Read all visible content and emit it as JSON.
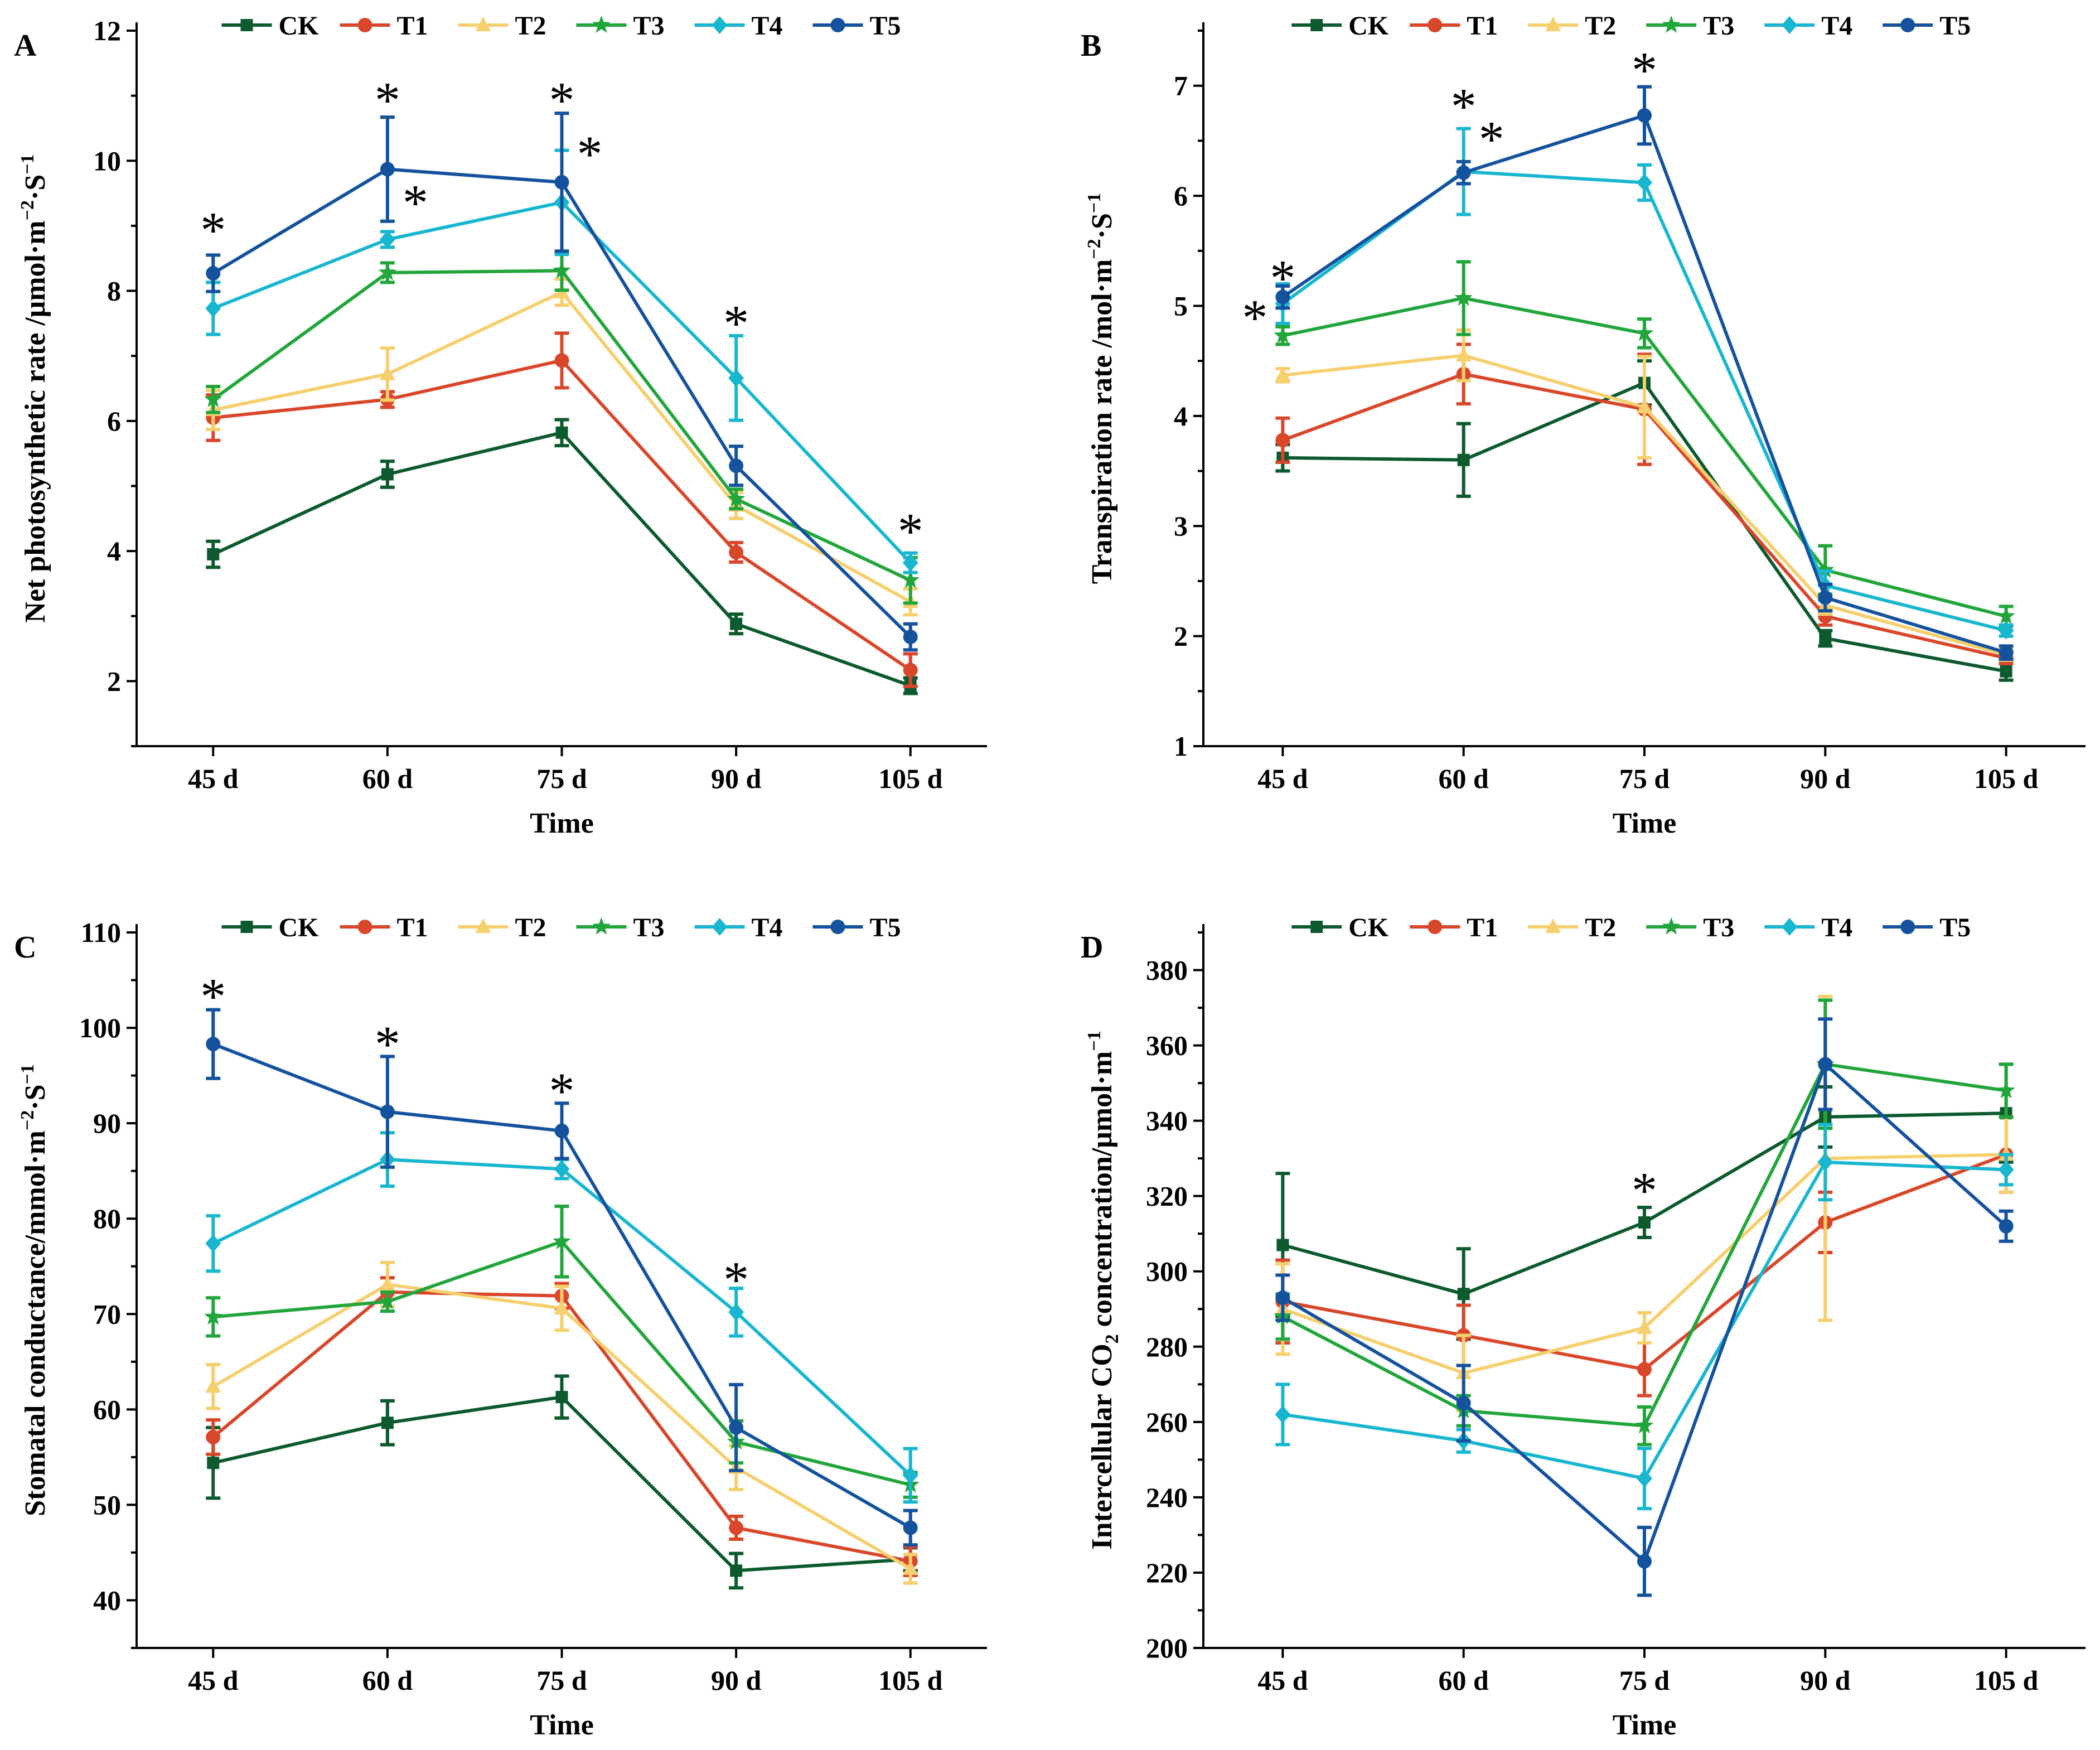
{
  "chart_data": [
    {
      "type": "line",
      "panel": "A",
      "xlabel": "Time",
      "ylabel": "Net photosynthetic rate /μmol·m⁻²·S⁻¹",
      "ylabel_parts": [
        "Net photosynthetic rate /μmol·m",
        "−2",
        "·S",
        "−1"
      ],
      "categories": [
        "45 d",
        "60 d",
        "75 d",
        "90 d",
        "105 d"
      ],
      "ylim": [
        1,
        12
      ],
      "yticks": [
        "2",
        "4",
        "6",
        "8",
        "10",
        "12"
      ],
      "legend": [
        "CK",
        "T1",
        "T2",
        "T3",
        "T4",
        "T5"
      ],
      "series": [
        {
          "name": "CK",
          "values": [
            3.95,
            5.18,
            5.82,
            2.88,
            1.93
          ],
          "errors": [
            0.2,
            0.2,
            0.2,
            0.15,
            0.12
          ]
        },
        {
          "name": "T1",
          "values": [
            6.05,
            6.33,
            6.93,
            3.98,
            2.17
          ],
          "errors": [
            0.35,
            0.12,
            0.42,
            0.15,
            0.25
          ]
        },
        {
          "name": "T2",
          "values": [
            6.17,
            6.72,
            7.98,
            4.7,
            3.22
          ],
          "errors": [
            0.3,
            0.4,
            0.2,
            0.2,
            0.2
          ]
        },
        {
          "name": "T3",
          "values": [
            6.33,
            8.28,
            8.31,
            4.8,
            3.55
          ],
          "errors": [
            0.2,
            0.15,
            0.3,
            0.15,
            0.35
          ]
        },
        {
          "name": "T4",
          "values": [
            7.73,
            8.79,
            9.36,
            6.66,
            3.82
          ],
          "errors": [
            0.4,
            0.12,
            0.8,
            0.65,
            0.15
          ]
        },
        {
          "name": "T5",
          "values": [
            8.27,
            9.87,
            9.67,
            5.31,
            2.68
          ],
          "errors": [
            0.28,
            0.8,
            1.06,
            0.3,
            0.2
          ]
        }
      ],
      "annotations": [
        {
          "text": "*",
          "x": "45 d",
          "y": 9.08
        },
        {
          "text": "*",
          "x": "60 d",
          "y": 11.08
        },
        {
          "text": "*",
          "x": "60 d",
          "offset": "right",
          "y": 9.5
        },
        {
          "text": "*",
          "x": "75 d",
          "y": 11.08
        },
        {
          "text": "*",
          "x": "75 d",
          "offset": "right",
          "y": 10.25
        },
        {
          "text": "*",
          "x": "90 d",
          "y": 7.65
        },
        {
          "text": "*",
          "x": "105 d",
          "y": 4.45
        }
      ]
    },
    {
      "type": "line",
      "panel": "B",
      "xlabel": "Time",
      "ylabel": "Transpiration rate /mol·m⁻²·S⁻¹",
      "ylabel_parts": [
        "Transpiration rate /mol·m",
        "−2",
        "·S",
        "−1"
      ],
      "categories": [
        "45 d",
        "60 d",
        "75 d",
        "90 d",
        "105 d"
      ],
      "ylim": [
        1,
        7.5
      ],
      "yticks": [
        "1",
        "2",
        "3",
        "4",
        "5",
        "6",
        "7"
      ],
      "legend": [
        "CK",
        "T1",
        "T2",
        "T3",
        "T4",
        "T5"
      ],
      "series": [
        {
          "name": "CK",
          "values": [
            3.62,
            3.6,
            4.3,
            1.98,
            1.68
          ],
          "errors": [
            0.12,
            0.33,
            0.2,
            0.07,
            0.08
          ]
        },
        {
          "name": "T1",
          "values": [
            3.78,
            4.38,
            4.06,
            2.18,
            1.8
          ],
          "errors": [
            0.2,
            0.27,
            0.5,
            0.08,
            0.05
          ]
        },
        {
          "name": "T2",
          "values": [
            4.37,
            4.55,
            4.08,
            2.28,
            1.83
          ],
          "errors": [
            0.06,
            0.23,
            0.46,
            0.08,
            0.05
          ]
        },
        {
          "name": "T3",
          "values": [
            4.73,
            5.07,
            4.75,
            2.6,
            2.18
          ],
          "errors": [
            0.08,
            0.33,
            0.13,
            0.22,
            0.09
          ]
        },
        {
          "name": "T4",
          "values": [
            5.02,
            6.22,
            6.12,
            2.46,
            2.05
          ],
          "errors": [
            0.18,
            0.39,
            0.16,
            0.13,
            0.05
          ]
        },
        {
          "name": "T5",
          "values": [
            5.08,
            6.21,
            6.73,
            2.35,
            1.85
          ],
          "errors": [
            0.1,
            0.1,
            0.26,
            0.12,
            0.06
          ]
        }
      ],
      "annotations": [
        {
          "text": "*",
          "x": "45 d",
          "y": 5.34
        },
        {
          "text": "*",
          "x": "45 d",
          "offset": "left",
          "y": 4.98
        },
        {
          "text": "*",
          "x": "60 d",
          "y": 6.9
        },
        {
          "text": "*",
          "x": "60 d",
          "offset": "right",
          "y": 6.6
        },
        {
          "text": "*",
          "x": "75 d",
          "y": 7.23
        }
      ]
    },
    {
      "type": "line",
      "panel": "C",
      "xlabel": "Time",
      "ylabel": "Stomatal conductance/mmol·m⁻²·S⁻¹",
      "ylabel_parts": [
        "Stomatal conductance/mmol·m",
        "−2",
        "·S",
        "−1"
      ],
      "categories": [
        "45 d",
        "60 d",
        "75 d",
        "90 d",
        "105 d"
      ],
      "ylim": [
        35,
        110
      ],
      "yticks": [
        "40",
        "50",
        "60",
        "70",
        "80",
        "90",
        "100",
        "110"
      ],
      "legend": [
        "CK",
        "T1",
        "T2",
        "T3",
        "T4",
        "T5"
      ],
      "series": [
        {
          "name": "CK",
          "values": [
            54.4,
            58.6,
            61.3,
            43.1,
            44.3
          ],
          "errors": [
            3.7,
            2.3,
            2.2,
            1.8,
            1.2
          ]
        },
        {
          "name": "T1",
          "values": [
            57.1,
            72.3,
            71.9,
            47.6,
            44.1
          ],
          "errors": [
            1.8,
            1.5,
            1.3,
            1.2,
            1.5
          ]
        },
        {
          "name": "T2",
          "values": [
            62.4,
            73.1,
            70.6,
            53.9,
            43.3
          ],
          "errors": [
            2.3,
            2.3,
            2.3,
            2.3,
            1.5
          ]
        },
        {
          "name": "T3",
          "values": [
            69.7,
            71.3,
            77.6,
            56.6,
            52.1
          ],
          "errors": [
            2.0,
            1.0,
            3.7,
            2.2,
            1.3
          ]
        },
        {
          "name": "T4",
          "values": [
            77.4,
            86.2,
            85.2,
            70.2,
            53.1
          ],
          "errors": [
            2.9,
            2.8,
            1.0,
            2.5,
            2.8
          ]
        },
        {
          "name": "T5",
          "values": [
            98.3,
            91.2,
            89.2,
            58.1,
            47.6
          ],
          "errors": [
            3.6,
            5.8,
            2.9,
            4.5,
            1.8
          ]
        }
      ],
      "annotations": [
        {
          "text": "*",
          "x": "45 d",
          "y": 104.3
        },
        {
          "text": "*",
          "x": "60 d",
          "y": 99.3
        },
        {
          "text": "*",
          "x": "75 d",
          "y": 94.4
        },
        {
          "text": "*",
          "x": "90 d",
          "y": 74.6
        }
      ]
    },
    {
      "type": "line",
      "panel": "D",
      "xlabel": "Time",
      "ylabel": "Intercellular CO₂ concentration/μmol·m⁻¹",
      "ylabel_parts": [
        "Intercellular CO",
        "2",
        " concentration/μmol·m",
        "−1"
      ],
      "categories": [
        "45 d",
        "60 d",
        "75 d",
        "90 d",
        "105 d"
      ],
      "ylim": [
        200,
        390
      ],
      "yticks": [
        "200",
        "220",
        "240",
        "260",
        "280",
        "300",
        "320",
        "340",
        "360",
        "380"
      ],
      "legend": [
        "CK",
        "T1",
        "T2",
        "T3",
        "T4",
        "T5"
      ],
      "series": [
        {
          "name": "CK",
          "values": [
            307,
            294,
            313,
            341,
            342
          ],
          "errors": [
            19,
            12,
            4,
            8,
            13
          ]
        },
        {
          "name": "T1",
          "values": [
            292,
            283,
            274,
            313,
            331
          ],
          "errors": [
            11,
            8,
            7,
            8,
            10
          ]
        },
        {
          "name": "T2",
          "values": [
            290,
            273,
            285,
            330,
            331
          ],
          "errors": [
            12,
            10,
            4,
            43,
            10
          ]
        },
        {
          "name": "T3",
          "values": [
            288,
            263,
            259,
            355,
            348
          ],
          "errors": [
            6,
            4,
            5,
            17,
            7
          ]
        },
        {
          "name": "T4",
          "values": [
            262,
            255,
            245,
            329,
            327
          ],
          "errors": [
            8,
            3,
            8,
            10,
            4
          ]
        },
        {
          "name": "T5",
          "values": [
            293,
            265,
            223,
            355,
            312
          ],
          "errors": [
            6,
            10,
            9,
            12,
            4
          ]
        }
      ],
      "annotations": [
        {
          "text": "*",
          "x": "75 d",
          "y": 324
        }
      ]
    }
  ],
  "panels": {
    "A": {
      "letter": "A"
    },
    "B": {
      "letter": "B"
    },
    "C": {
      "letter": "C"
    },
    "D": {
      "letter": "D"
    }
  },
  "colors": {
    "CK": "#0c5a2e",
    "T1": "#d9472b",
    "T2": "#f6cf6e",
    "T3": "#22a63c",
    "T4": "#19b6d0",
    "T5": "#15529e"
  },
  "markers": {
    "CK": "square",
    "T1": "circle",
    "T2": "triangle",
    "T3": "star",
    "T4": "diamond",
    "T5": "circle"
  }
}
